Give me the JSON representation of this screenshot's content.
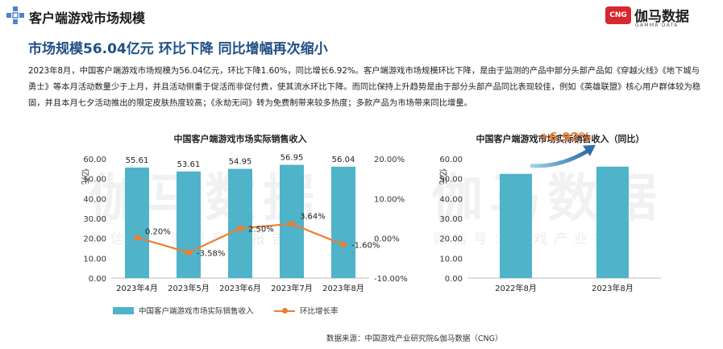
{
  "header": {
    "title": "客户端游戏市场规模",
    "brand_box": "CNG",
    "brand_name": "伽马数据",
    "brand_sub": "GAMMA DATA"
  },
  "headline": "市场规模56.04亿元 环比下降 同比增幅再次缩小",
  "paragraph": "2023年8月，中国客户端游戏市场规模为56.04亿元，环比下降1.60%，同比增长6.92%。客户端游戏市场规模环比下降，是由于监测的产品中部分头部产品如《穿越火线》《地下城与勇士》等本月活动数量少于上月，并且活动侧重于促活而非促付费，使其流水环比下降。而同比保持上升趋势是由于部分头部产品同比表现较佳，例如《英雄联盟》核心用户群体较为稳固，并且本月七夕活动推出的限定皮肤热度较高；《永劫无间》转为免费制带来较多热度；多款产品为市场带来同比增量。",
  "watermark": {
    "main": "伽马数据",
    "sub": "微信号：游戏产业报告"
  },
  "legend": {
    "bar": "中国客户端游戏市场实际销售收入",
    "line": "环比增长率"
  },
  "source": "数据来源：中国游戏产业研究院&伽马数据（CNG）",
  "colors": {
    "bar": "#4fb3c9",
    "line": "#ed7d31",
    "headline": "#1f4f86",
    "brand": "#d7282f"
  },
  "chart_data": [
    {
      "type": "bar+line",
      "title": "中国客户端游戏市场实际销售收入",
      "ylabel": "亿元",
      "categories": [
        "2023年4月",
        "2023年5月",
        "2023年6月",
        "2023年7月",
        "2023年8月"
      ],
      "series": [
        {
          "name": "中国客户端游戏市场实际销售收入",
          "type": "bar",
          "axis": "left",
          "values": [
            55.61,
            53.61,
            54.95,
            56.95,
            56.04
          ]
        },
        {
          "name": "环比增长率",
          "type": "line",
          "axis": "right",
          "values": [
            0.2,
            -3.58,
            2.5,
            3.64,
            -1.6
          ]
        }
      ],
      "bar_labels": [
        "55.61",
        "53.61",
        "54.95",
        "56.95",
        "56.04"
      ],
      "line_labels": [
        "0.20%",
        "-3.58%",
        "2.50%",
        "3.64%",
        "-1.60%"
      ],
      "ylim": [
        0,
        60
      ],
      "yticks": [
        "0.00",
        "10.00",
        "20.00",
        "30.00",
        "40.00",
        "50.00",
        "60.00"
      ],
      "y2lim": [
        -10,
        20
      ],
      "y2ticks": [
        "-10.00%",
        "0.00%",
        "10.00%",
        "20.00%"
      ]
    },
    {
      "type": "bar",
      "title": "中国客户端游戏市场实际销售收入（同比）",
      "ylabel": "亿元",
      "categories": [
        "2022年8月",
        "2023年8月"
      ],
      "values": [
        52.41,
        56.04
      ],
      "ylim": [
        0,
        60
      ],
      "yticks": [
        "0.00",
        "10.00",
        "20.00",
        "30.00",
        "40.00",
        "50.00",
        "60.00"
      ],
      "annotation": "+6.92%"
    }
  ]
}
